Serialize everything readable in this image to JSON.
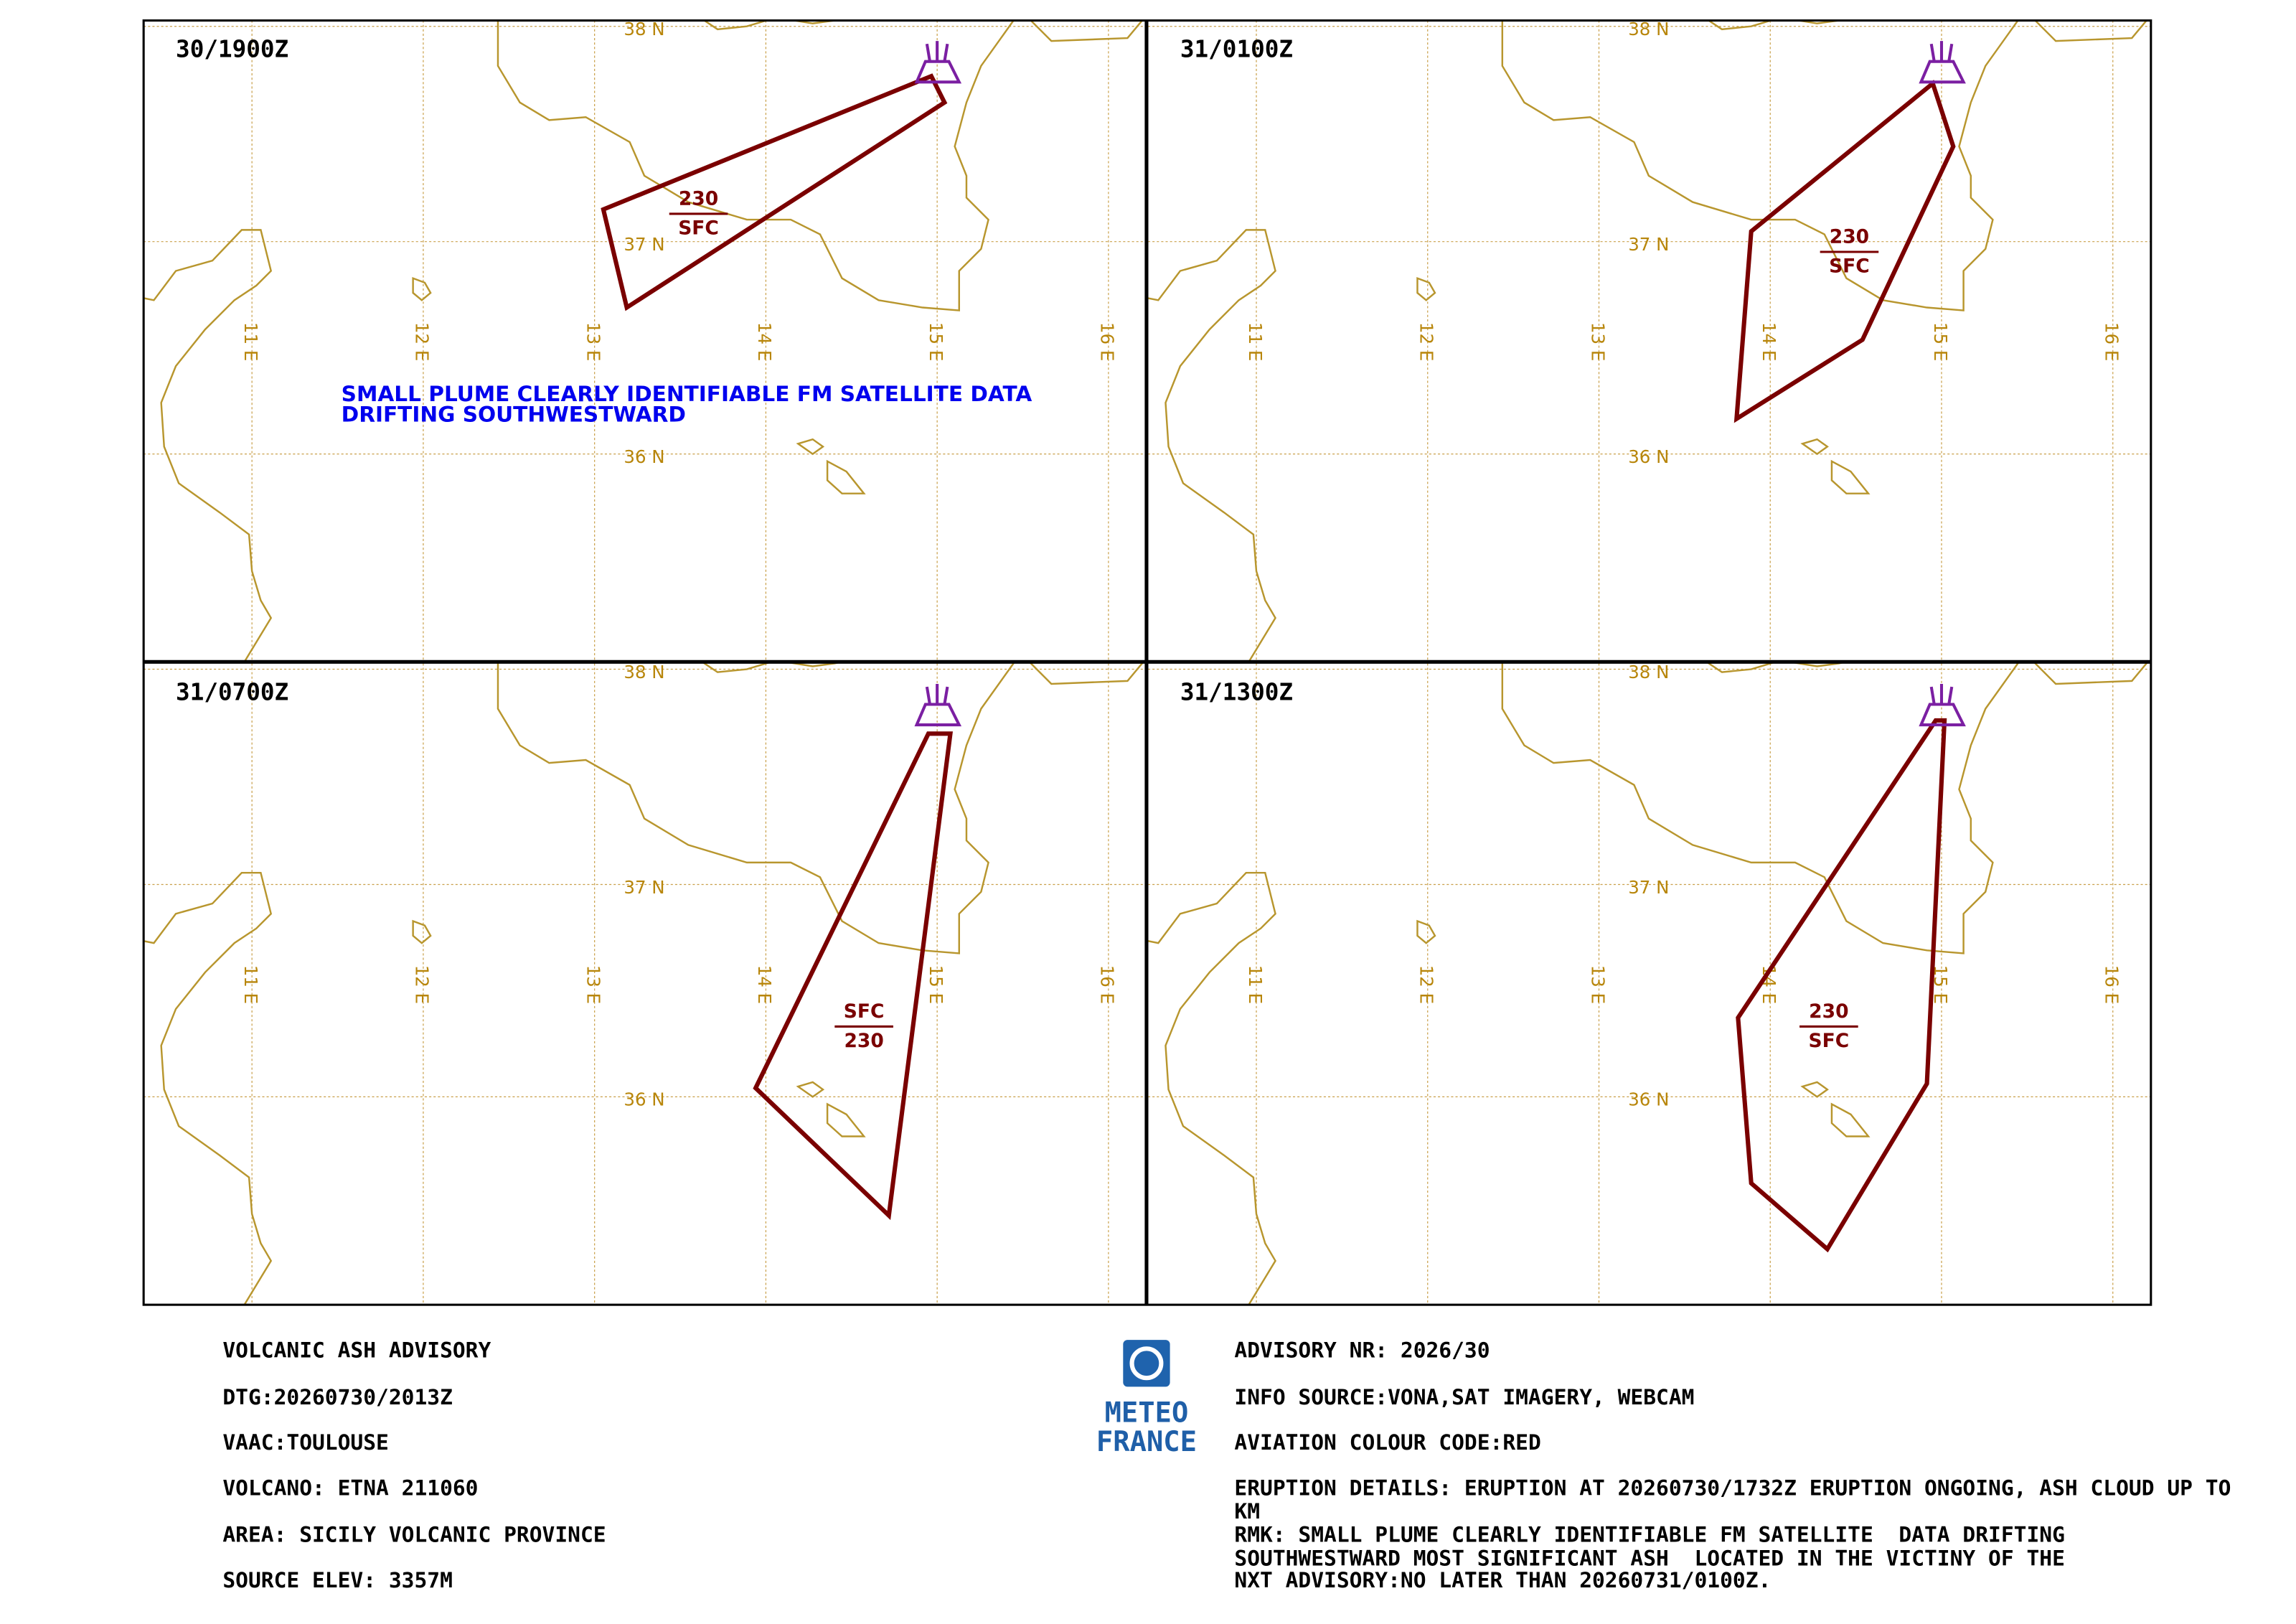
{
  "panels": [
    {
      "time": "30/1900Z",
      "plume_labels": [
        "230",
        "SFC"
      ],
      "remark": [
        "SMALL PLUME CLEARLY IDENTIFIABLE FM SATELLITE DATA",
        "DRIFTING SOUTHWESTWARD"
      ]
    },
    {
      "time": "31/0100Z",
      "plume_labels": [
        "230",
        "SFC"
      ]
    },
    {
      "time": "31/0700Z",
      "plume_labels": [
        "SFC",
        "230"
      ]
    },
    {
      "time": "31/1300Z",
      "plume_labels": [
        "230",
        "SFC"
      ]
    }
  ],
  "map": {
    "lat_labels": [
      "38 N",
      "37 N",
      "36 N"
    ],
    "lon_labels": [
      "11 E",
      "12 E",
      "13 E",
      "14 E",
      "15 E",
      "16 E"
    ]
  },
  "footer": {
    "left": [
      "VOLCANIC ASH ADVISORY",
      "DTG:20260730/2013Z",
      "VAAC:TOULOUSE",
      "VOLCANO: ETNA 211060",
      "AREA: SICILY VOLCANIC PROVINCE",
      "SOURCE ELEV: 3357M"
    ],
    "right": [
      "ADVISORY NR: 2026/30",
      "INFO SOURCE:VONA,SAT IMAGERY, WEBCAM",
      "AVIATION COLOUR CODE:RED",
      "ERUPTION DETAILS: ERUPTION AT 20260730/1732Z ERUPTION ONGOING, ASH CLOUD UP TO",
      "KM",
      "RMK: SMALL PLUME CLEARLY IDENTIFIABLE FM SATELLITE  DATA DRIFTING",
      "SOUTHWESTWARD MOST SIGNIFICANT ASH  LOCATED IN THE VICTINY OF THE",
      "NXT ADVISORY:NO LATER THAN 20260731/0100Z."
    ],
    "logo": [
      "METEO",
      "FRANCE"
    ]
  }
}
